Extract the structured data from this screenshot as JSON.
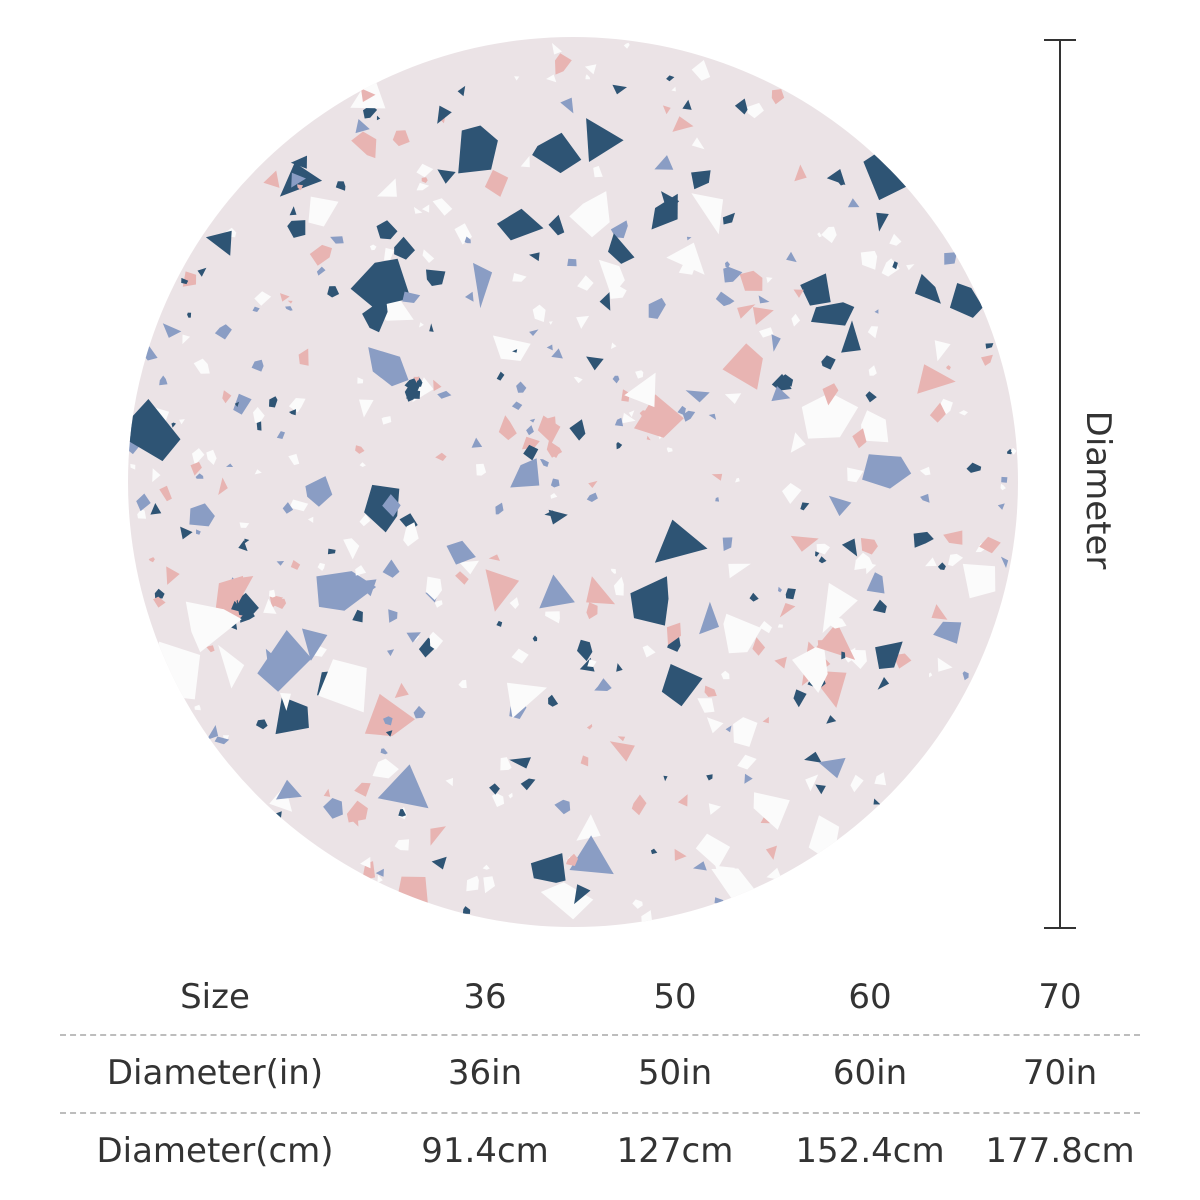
{
  "dimension_label": "Diameter",
  "colors": {
    "rug_background": "#ebe3e6",
    "chip_navy": "#2e5474",
    "chip_blue": "#8a9dc4",
    "chip_pink": "#e8b4b2",
    "chip_white": "#fbfbfb",
    "text": "#333333",
    "separator": "#bdbdbd"
  },
  "size_table": {
    "rows": [
      {
        "label": "Size",
        "values": [
          "36",
          "50",
          "60",
          "70"
        ]
      },
      {
        "label": "Diameter(in)",
        "values": [
          "36in",
          "50in",
          "60in",
          "70in"
        ]
      },
      {
        "label": "Diameter(cm)",
        "values": [
          "91.4cm",
          "127cm",
          "152.4cm",
          "177.8cm"
        ]
      }
    ]
  }
}
